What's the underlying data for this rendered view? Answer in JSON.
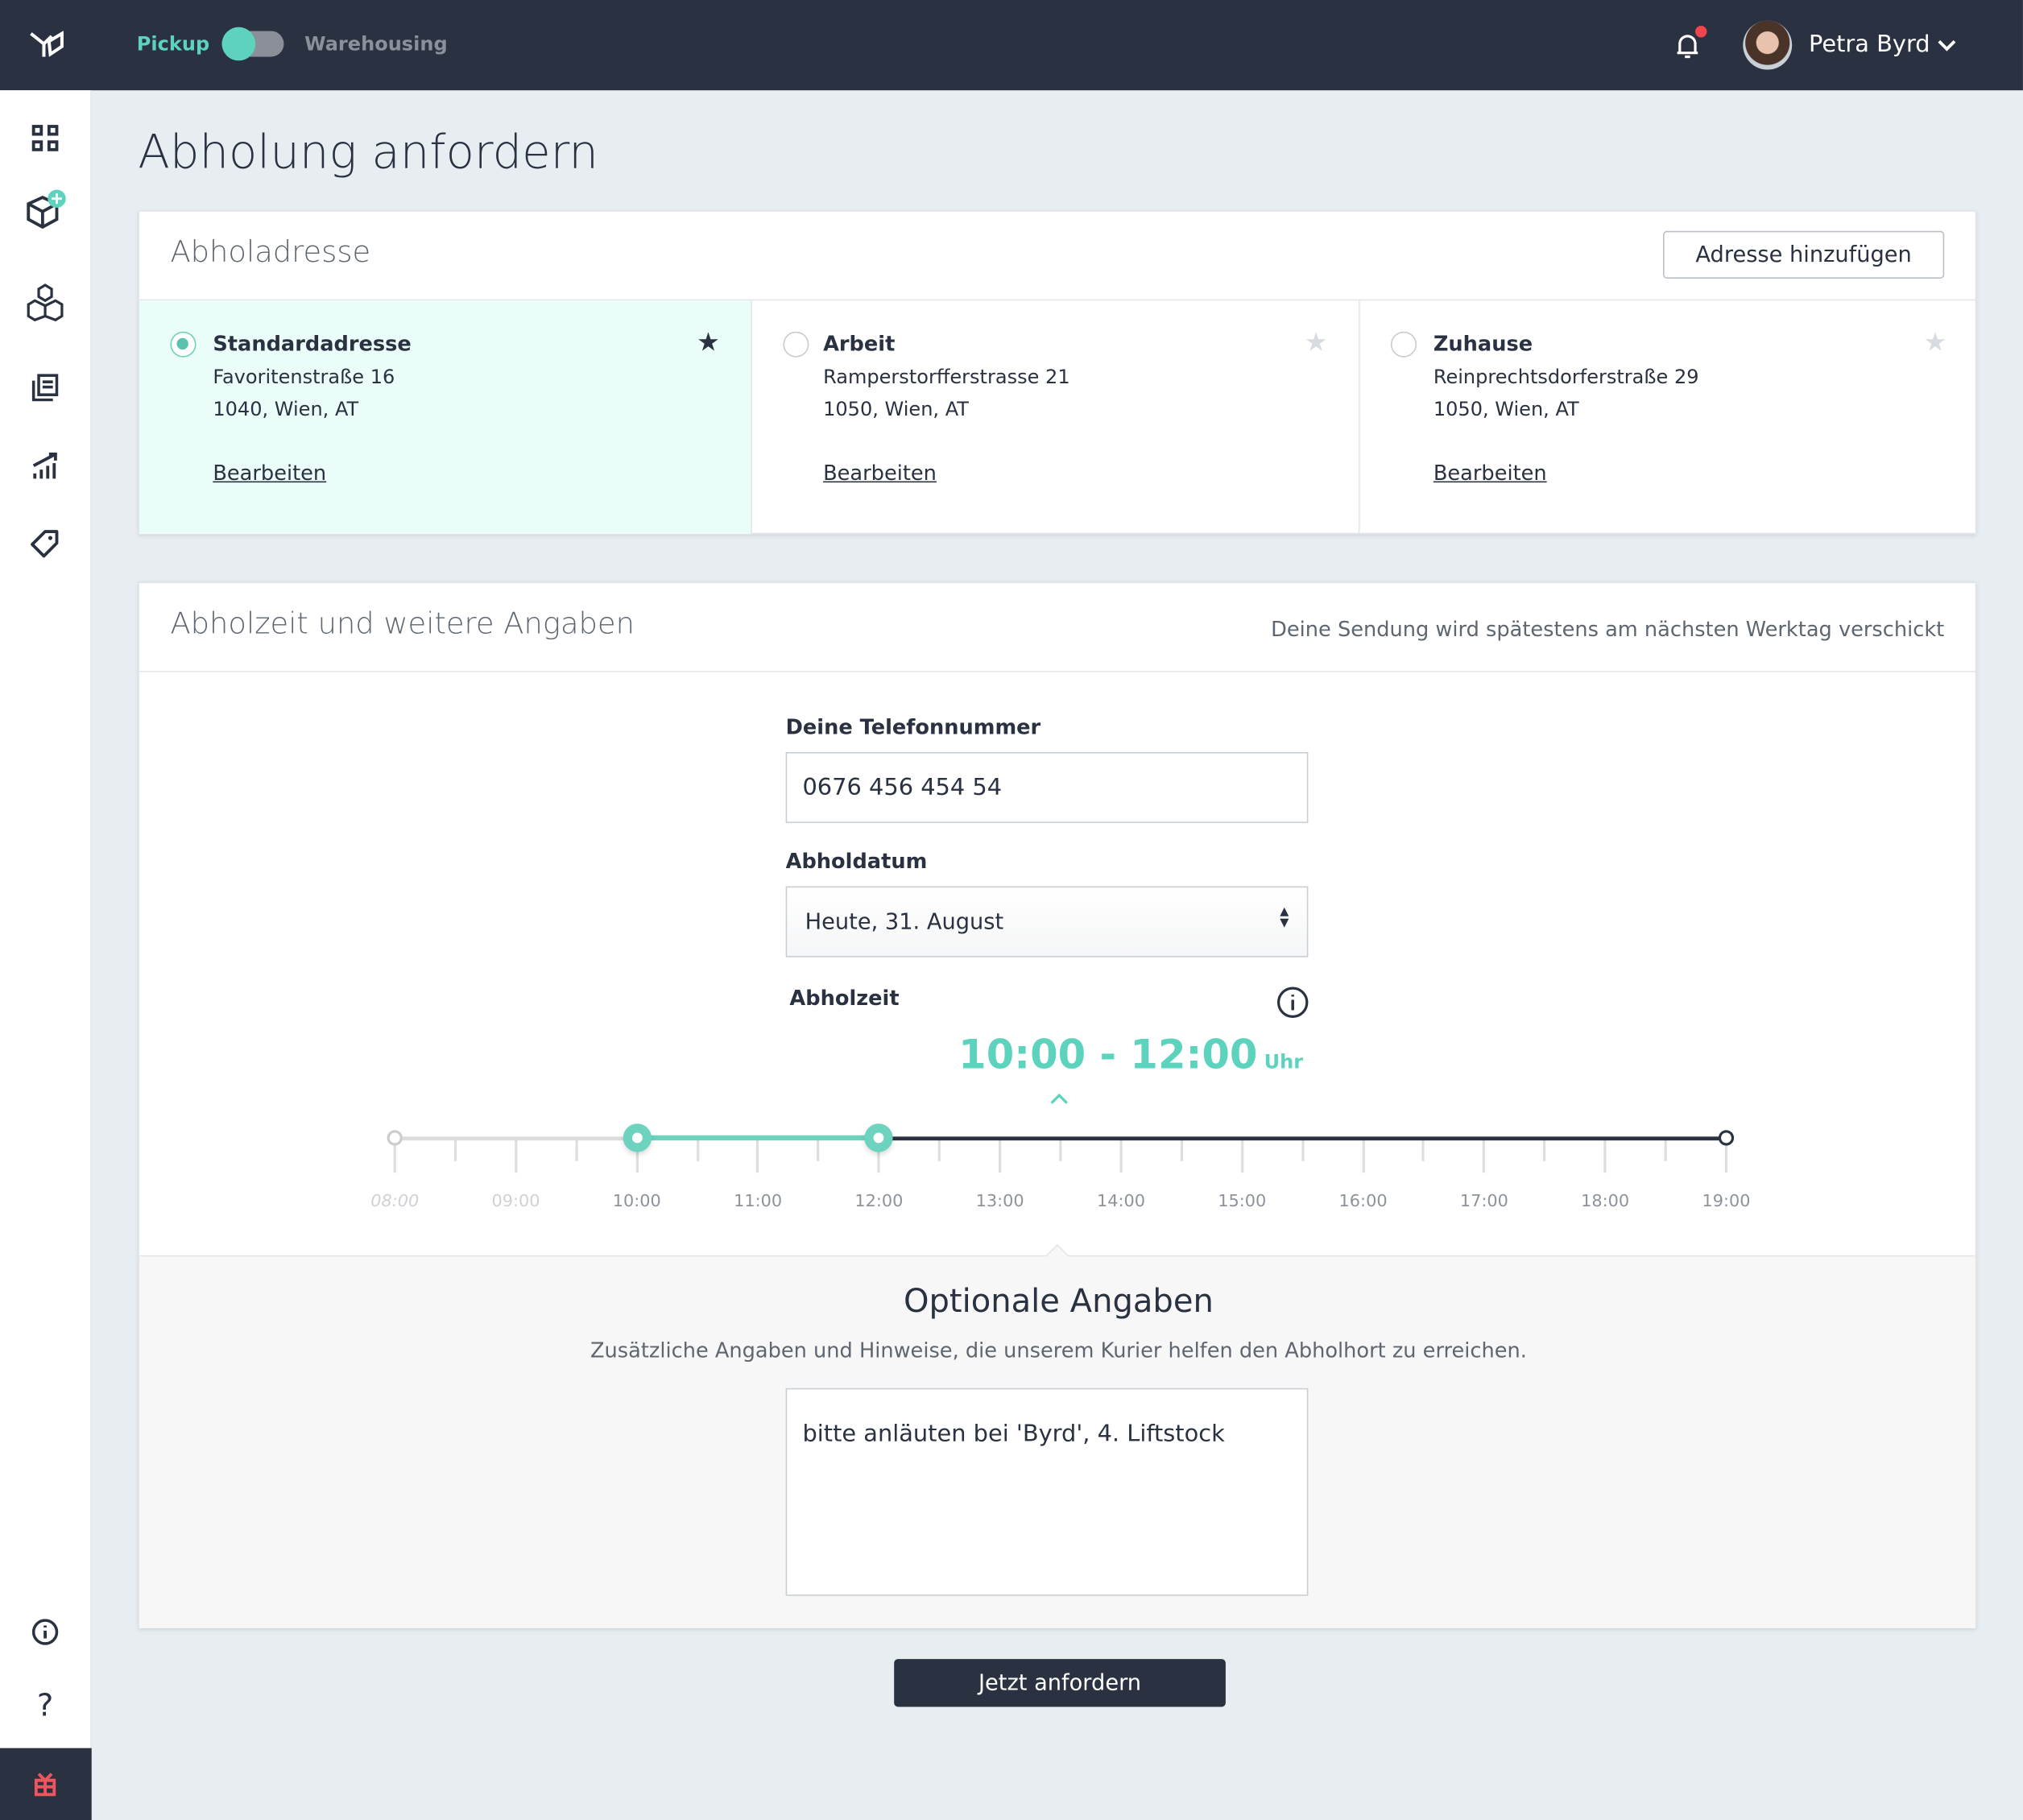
{
  "topbar": {
    "mode_left": "Pickup",
    "mode_right": "Warehousing",
    "toggle_on_left": true,
    "user_name": "Petra Byrd",
    "accent": "#5dd3bd",
    "notification_dot": "#f0454f"
  },
  "sidebar": {
    "items": [
      "dashboard-icon",
      "new-shipment-icon",
      "inventory-icon",
      "documents-icon",
      "analytics-icon",
      "tag-icon"
    ],
    "bottom": [
      "info-icon",
      "help-icon",
      "gift-icon"
    ]
  },
  "page": {
    "title": "Abholung anfordern"
  },
  "address_card": {
    "title": "Abholadresse",
    "add_button": "Adresse hinzufügen",
    "addresses": [
      {
        "name": "Standardadresse",
        "street": "Favoritenstraße 16",
        "city": "1040, Wien, AT",
        "edit": "Bearbeiten",
        "selected": true,
        "favorite": true
      },
      {
        "name": "Arbeit",
        "street": "Ramperstorfferstrasse 21",
        "city": "1050, Wien, AT",
        "edit": "Bearbeiten",
        "selected": false,
        "favorite": false
      },
      {
        "name": "Zuhause",
        "street": "Reinprechtsdorferstraße 29",
        "city": "1050, Wien, AT",
        "edit": "Bearbeiten",
        "selected": false,
        "favorite": false
      }
    ]
  },
  "details_card": {
    "title": "Abholzeit und weitere Angaben",
    "note": "Deine Sendung wird spätestens am nächsten Werktag verschickt",
    "phone_label": "Deine Telefonnummer",
    "phone_value": "0676 456 454 54",
    "date_label": "Abholdatum",
    "date_value": "Heute, 31. August",
    "time_label": "Abholzeit",
    "time_range": "10:00 - 12:00",
    "time_unit": "Uhr",
    "slider": {
      "hours": [
        "08:00",
        "09:00",
        "10:00",
        "11:00",
        "12:00",
        "13:00",
        "14:00",
        "15:00",
        "16:00",
        "17:00",
        "18:00",
        "19:00"
      ],
      "start": "10:00",
      "end": "12:00",
      "min": 8,
      "max": 19,
      "from": 10,
      "to": 12,
      "disabled_before": 10
    },
    "optional_title": "Optionale Angaben",
    "optional_subtitle": "Zusätzliche Angaben und Hinweise, die unserem Kurier helfen den Abholhort zu erreichen.",
    "notes_value": "bitte anläuten bei 'Byrd', 4. Liftstock"
  },
  "submit_button": "Jetzt anfordern"
}
